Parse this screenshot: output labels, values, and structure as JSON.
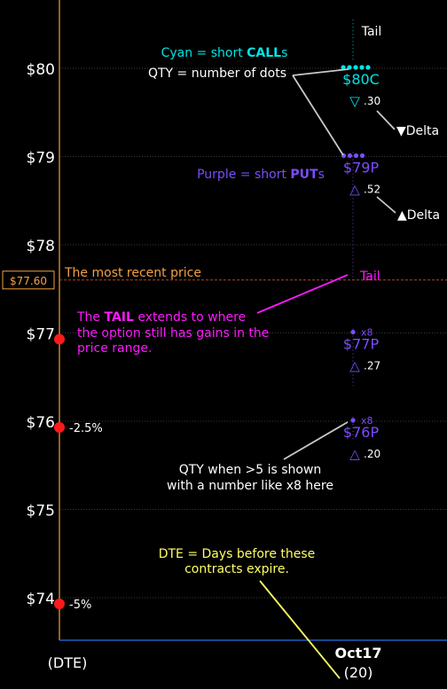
{
  "chart_data": {
    "type": "scatter",
    "title": "",
    "xlabel": "(DTE)",
    "ylabel": "",
    "ylim": [
      73.5,
      80.7
    ],
    "y_ticks": [
      {
        "value": 80,
        "label": "$80"
      },
      {
        "value": 79,
        "label": "$79"
      },
      {
        "value": 78,
        "label": "$78"
      },
      {
        "value": 77,
        "label": "$77"
      },
      {
        "value": 76,
        "label": "$76"
      },
      {
        "value": 75,
        "label": "$75"
      },
      {
        "value": 74,
        "label": "$74"
      }
    ],
    "grid": true,
    "x_categories": [
      {
        "date": "Oct17",
        "dte": "(20)"
      }
    ],
    "current_price": {
      "value": 77.6,
      "label": "$77.60"
    },
    "percent_markers": [
      {
        "value": 76.93,
        "label": ""
      },
      {
        "value": 75.93,
        "label": "-2.5%"
      },
      {
        "value": 73.93,
        "label": "-5%"
      }
    ],
    "series": [
      {
        "name": "Cyan = short CALLs",
        "color": "#00e5e5",
        "points": [
          {
            "strike": 80,
            "label": "$80C",
            "qty": 5,
            "qty_label": "",
            "delta": ".30",
            "delta_symbol": "▽",
            "tail_top": 80.55,
            "tail_bottom": 80.08
          }
        ]
      },
      {
        "name": "Purple = short PUTs",
        "color": "#7b4dff",
        "points": [
          {
            "strike": 79,
            "label": "$79P",
            "qty": 4,
            "qty_label": "",
            "delta": ".52",
            "delta_symbol": "△",
            "tail_top": 79.05,
            "tail_bottom": 77.6
          },
          {
            "strike": 77,
            "label": "$77P",
            "qty": 8,
            "qty_label": "x8",
            "delta": ".27",
            "delta_symbol": "△",
            "tail_top": 77.05,
            "tail_bottom": 76.4
          },
          {
            "strike": 76,
            "label": "$76P",
            "qty": 8,
            "qty_label": "x8",
            "delta": ".20",
            "delta_symbol": "△",
            "tail_top": 76.05,
            "tail_bottom": 75.8
          }
        ]
      }
    ],
    "annotations": [
      {
        "id": "cyan",
        "parts": [
          {
            "t": "Cyan = short ",
            "bold": false
          },
          {
            "t": "CALL",
            "bold": true
          },
          {
            "t": "s",
            "bold": false
          }
        ]
      },
      {
        "id": "qty",
        "parts": [
          {
            "t": "QTY = number of dots",
            "bold": false
          }
        ]
      },
      {
        "id": "purple",
        "parts": [
          {
            "t": "Purple = short ",
            "bold": false
          },
          {
            "t": "PUT",
            "bold": true
          },
          {
            "t": "s",
            "bold": false
          }
        ]
      },
      {
        "id": "tail-top",
        "parts": [
          {
            "t": "Tail",
            "bold": false
          }
        ]
      },
      {
        "id": "delta-down",
        "parts": [
          {
            "t": "▼Delta",
            "bold": false
          }
        ]
      },
      {
        "id": "delta-up",
        "parts": [
          {
            "t": "▲Delta",
            "bold": false
          }
        ]
      },
      {
        "id": "recent-price",
        "parts": [
          {
            "t": "The most recent price",
            "bold": false
          }
        ]
      },
      {
        "id": "tail-mid",
        "parts": [
          {
            "t": "Tail",
            "bold": false
          }
        ]
      },
      {
        "id": "tail-explain-1",
        "parts": [
          {
            "t": "The ",
            "bold": false
          },
          {
            "t": "TAIL",
            "bold": true
          },
          {
            "t": " extends to where",
            "bold": false
          }
        ]
      },
      {
        "id": "tail-explain-2",
        "parts": [
          {
            "t": "the option still has gains in the",
            "bold": false
          }
        ]
      },
      {
        "id": "tail-explain-3",
        "parts": [
          {
            "t": "price range.",
            "bold": false
          }
        ]
      },
      {
        "id": "qty-big-1",
        "parts": [
          {
            "t": "QTY when >5 is shown",
            "bold": false
          }
        ]
      },
      {
        "id": "qty-big-2",
        "parts": [
          {
            "t": "with a number like x8 here",
            "bold": false
          }
        ]
      },
      {
        "id": "dte-1",
        "parts": [
          {
            "t": "DTE = Days before these",
            "bold": false
          }
        ]
      },
      {
        "id": "dte-2",
        "parts": [
          {
            "t": "contracts expire.",
            "bold": false
          }
        ]
      }
    ],
    "colors": {
      "background": "#000000",
      "grid": "#3a3a3a",
      "axis_price": "#f5a142",
      "axis_bottom": "#1f5fbf",
      "marker": "#ff1a1a",
      "annotation_cyan": "#00e5e5",
      "annotation_white": "#ffffff",
      "annotation_purple": "#7b4dff",
      "annotation_orange": "#f5a142",
      "annotation_magenta": "#ff1aff",
      "annotation_yellow": "#ffff66",
      "callout_gray": "#c8c8c8"
    }
  }
}
